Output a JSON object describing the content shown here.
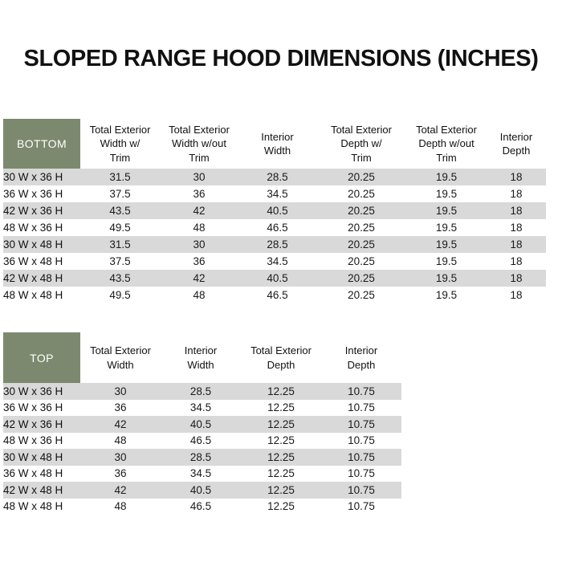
{
  "page": {
    "title": "SLOPED RANGE HOOD DIMENSIONS (INCHES)"
  },
  "colors": {
    "corner_green": "#7C896E",
    "stripe_gray": "#D9D9D9",
    "row_white": "#FFFFFF",
    "text": "#111111"
  },
  "tables": [
    {
      "corner_label": "BOTTOM",
      "columns": [
        "Total Exterior\nWidth w/\nTrim",
        "Total Exterior\nWidth w/out\nTrim",
        "Interior\nWidth",
        "Total Exterior\nDepth w/\nTrim",
        "Total Exterior\nDepth w/out\nTrim",
        "Interior\nDepth"
      ],
      "rows": [
        {
          "label": "30 W x 36 H",
          "values": [
            "31.5",
            "30",
            "28.5",
            "20.25",
            "19.5",
            "18"
          ]
        },
        {
          "label": "36 W x 36 H",
          "values": [
            "37.5",
            "36",
            "34.5",
            "20.25",
            "19.5",
            "18"
          ]
        },
        {
          "label": "42 W x 36 H",
          "values": [
            "43.5",
            "42",
            "40.5",
            "20.25",
            "19.5",
            "18"
          ]
        },
        {
          "label": "48 W x 36 H",
          "values": [
            "49.5",
            "48",
            "46.5",
            "20.25",
            "19.5",
            "18"
          ]
        },
        {
          "label": "30 W x 48 H",
          "values": [
            "31.5",
            "30",
            "28.5",
            "20.25",
            "19.5",
            "18"
          ]
        },
        {
          "label": "36 W x 48 H",
          "values": [
            "37.5",
            "36",
            "34.5",
            "20.25",
            "19.5",
            "18"
          ]
        },
        {
          "label": "42 W x 48 H",
          "values": [
            "43.5",
            "42",
            "40.5",
            "20.25",
            "19.5",
            "18"
          ]
        },
        {
          "label": "48 W x 48 H",
          "values": [
            "49.5",
            "48",
            "46.5",
            "20.25",
            "19.5",
            "18"
          ]
        }
      ]
    },
    {
      "corner_label": "TOP",
      "columns": [
        "Total Exterior\nWidth",
        "Interior\nWidth",
        "Total Exterior\nDepth",
        "Interior\nDepth"
      ],
      "rows": [
        {
          "label": "30 W x 36 H",
          "values": [
            "30",
            "28.5",
            "12.25",
            "10.75"
          ]
        },
        {
          "label": "36 W x 36 H",
          "values": [
            "36",
            "34.5",
            "12.25",
            "10.75"
          ]
        },
        {
          "label": "42 W x 36 H",
          "values": [
            "42",
            "40.5",
            "12.25",
            "10.75"
          ]
        },
        {
          "label": "48 W x 36 H",
          "values": [
            "48",
            "46.5",
            "12.25",
            "10.75"
          ]
        },
        {
          "label": "30 W x 48 H",
          "values": [
            "30",
            "28.5",
            "12.25",
            "10.75"
          ]
        },
        {
          "label": "36 W x 48 H",
          "values": [
            "36",
            "34.5",
            "12.25",
            "10.75"
          ]
        },
        {
          "label": "42 W x 48 H",
          "values": [
            "42",
            "40.5",
            "12.25",
            "10.75"
          ]
        },
        {
          "label": "48 W x 48 H",
          "values": [
            "48",
            "46.5",
            "12.25",
            "10.75"
          ]
        }
      ]
    }
  ]
}
